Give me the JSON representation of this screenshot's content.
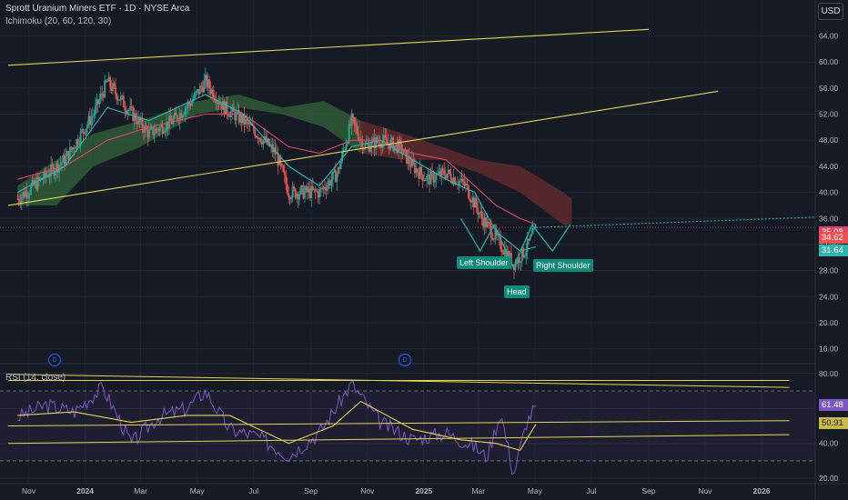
{
  "header": {
    "title": "Sprott Uranium Miners ETF · 1D · NYSE Arca",
    "indicator": "Ichimoku (20, 60, 120, 30)",
    "rsi_label": "RSI (14, close)",
    "currency": "USD"
  },
  "event_marker_label": "D",
  "pattern_labels": {
    "left": "Left Shoulder",
    "head": "Head",
    "right": "Right Shoulder"
  },
  "price_tags": {
    "a": "35.08",
    "b": "34.62",
    "c": "31.64"
  },
  "rsi_tags": {
    "a": "61.48",
    "b": "50.91"
  },
  "colors": {
    "background": "#161a25",
    "up": "#26a69a",
    "down": "#ef5350",
    "trendline": "#e5d35a",
    "conversion": "#2fb5b0",
    "base": "#e0446a",
    "cloud_bull": "#2e5c36",
    "cloud_bear": "#5e2a2e",
    "rsi": "#7e57c2",
    "rsi_ma": "#e5d35a",
    "pattern": "#26a69a"
  },
  "chart_data": {
    "type": "candlestick",
    "title": "Sprott Uranium Miners ETF · 1D · NYSE Arca",
    "x_axis_labels": [
      "Nov",
      "2024",
      "Mar",
      "May",
      "Jul",
      "Sep",
      "Nov",
      "2025",
      "Mar",
      "May",
      "Jul",
      "Sep",
      "Nov",
      "2026"
    ],
    "y_axis": {
      "ticks": [
        16,
        20,
        24,
        28,
        32,
        36,
        40,
        44,
        48,
        52,
        56,
        60,
        64
      ],
      "tick_labels": [
        "16.00",
        "20.00",
        "24.00",
        "28.00",
        "32.00",
        "36.00",
        "40.00",
        "44.00",
        "48.00",
        "52.00",
        "56.00",
        "60.00",
        "64.00"
      ],
      "range": [
        14,
        67
      ]
    },
    "close_path": [
      [
        "2023-10-20",
        39
      ],
      [
        "2023-11-15",
        42
      ],
      [
        "2023-12-10",
        45
      ],
      [
        "2024-01-10",
        52
      ],
      [
        "2024-01-25",
        57
      ],
      [
        "2024-02-15",
        53
      ],
      [
        "2024-03-10",
        49
      ],
      [
        "2024-04-05",
        51
      ],
      [
        "2024-04-25",
        54
      ],
      [
        "2024-05-10",
        57
      ],
      [
        "2024-05-30",
        53
      ],
      [
        "2024-06-20",
        51
      ],
      [
        "2024-07-05",
        49
      ],
      [
        "2024-07-25",
        46
      ],
      [
        "2024-08-08",
        40
      ],
      [
        "2024-08-25",
        40
      ],
      [
        "2024-09-10",
        40
      ],
      [
        "2024-09-30",
        43
      ],
      [
        "2024-10-15",
        51
      ],
      [
        "2024-10-29",
        47
      ],
      [
        "2024-11-15",
        48
      ],
      [
        "2024-12-05",
        47
      ],
      [
        "2024-12-20",
        44
      ],
      [
        "2025-01-05",
        42
      ],
      [
        "2025-01-25",
        43
      ],
      [
        "2025-02-15",
        41
      ],
      [
        "2025-03-05",
        36
      ],
      [
        "2025-03-20",
        33
      ],
      [
        "2025-04-08",
        29
      ],
      [
        "2025-04-20",
        31
      ],
      [
        "2025-05-01",
        34
      ],
      [
        "2025-05-02",
        34.62
      ]
    ],
    "ichimoku": {
      "settings": "20, 60, 120, 30",
      "conversion_path": [
        [
          "2023-10-20",
          40
        ],
        [
          "2023-12-10",
          44
        ],
        [
          "2024-01-25",
          53
        ],
        [
          "2024-03-10",
          51
        ],
        [
          "2024-05-10",
          55
        ],
        [
          "2024-06-20",
          52
        ],
        [
          "2024-08-08",
          44
        ],
        [
          "2024-09-10",
          41
        ],
        [
          "2024-10-15",
          47
        ],
        [
          "2024-11-15",
          48
        ],
        [
          "2024-12-20",
          45
        ],
        [
          "2025-01-25",
          42
        ],
        [
          "2025-02-25",
          40
        ],
        [
          "2025-03-20",
          34
        ],
        [
          "2025-04-15",
          31
        ],
        [
          "2025-05-02",
          31.64
        ]
      ],
      "base_path": [
        [
          "2023-10-20",
          42
        ],
        [
          "2023-12-10",
          44
        ],
        [
          "2024-01-25",
          48
        ],
        [
          "2024-03-10",
          50
        ],
        [
          "2024-05-10",
          52
        ],
        [
          "2024-06-20",
          52
        ],
        [
          "2024-08-08",
          47
        ],
        [
          "2024-09-10",
          46
        ],
        [
          "2024-10-15",
          48
        ],
        [
          "2024-11-15",
          48
        ],
        [
          "2024-12-20",
          46
        ],
        [
          "2025-01-25",
          45
        ],
        [
          "2025-02-25",
          41
        ],
        [
          "2025-03-20",
          38
        ],
        [
          "2025-04-15",
          36
        ],
        [
          "2025-05-02",
          35.08
        ]
      ],
      "cloud_path": [
        [
          "2023-10-20",
          38,
          41
        ],
        [
          "2023-12-01",
          38,
          45
        ],
        [
          "2024-01-10",
          44,
          49
        ],
        [
          "2024-03-01",
          47,
          51
        ],
        [
          "2024-05-01",
          52,
          54
        ],
        [
          "2024-06-15",
          53,
          55
        ],
        [
          "2024-08-01",
          52,
          53
        ],
        [
          "2024-09-15",
          50,
          54
        ],
        [
          "2024-10-25",
          46,
          51
        ],
        [
          "2024-12-10",
          45,
          49
        ],
        [
          "2025-01-20",
          45,
          47
        ],
        [
          "2025-03-01",
          43,
          45
        ],
        [
          "2025-04-15",
          40,
          44
        ],
        [
          "2025-06-01",
          35,
          40
        ],
        [
          "2025-06-10",
          35,
          39
        ]
      ]
    },
    "trendlines": [
      {
        "from": [
          "2023-10-10",
          59.5
        ],
        "to": [
          "2025-09-01",
          65
        ]
      },
      {
        "from": [
          "2023-10-10",
          38
        ],
        "to": [
          "2025-11-15",
          55.5
        ]
      }
    ],
    "pattern": {
      "name": "Head and Shoulders",
      "points": [
        [
          "2025-02-10",
          36
        ],
        [
          "2025-03-03",
          31
        ],
        [
          "2025-03-18",
          35
        ],
        [
          "2025-04-08",
          28.5
        ],
        [
          "2025-04-28",
          35
        ],
        [
          "2025-05-20",
          31
        ],
        [
          "2025-06-08",
          35
        ]
      ]
    },
    "last_price_line": 34.62
  },
  "rsi_chart": {
    "type": "line",
    "title": "RSI (14, close)",
    "y_axis": {
      "ticks": [
        20,
        40,
        60,
        80
      ],
      "tick_labels": [
        "20.00",
        "40.00",
        "60.00",
        "80.00"
      ],
      "range": [
        18,
        83
      ]
    },
    "levels": [
      70,
      30
    ],
    "rsi_path": [
      [
        "2023-10-20",
        55
      ],
      [
        "2023-11-20",
        62
      ],
      [
        "2023-12-20",
        58
      ],
      [
        "2024-01-20",
        72
      ],
      [
        "2024-02-20",
        40
      ],
      [
        "2024-03-20",
        55
      ],
      [
        "2024-04-20",
        60
      ],
      [
        "2024-05-10",
        70
      ],
      [
        "2024-06-05",
        48
      ],
      [
        "2024-07-05",
        44
      ],
      [
        "2024-08-08",
        33
      ],
      [
        "2024-09-10",
        46
      ],
      [
        "2024-10-15",
        74
      ],
      [
        "2024-11-15",
        52
      ],
      [
        "2024-12-20",
        42
      ],
      [
        "2025-01-25",
        46
      ],
      [
        "2025-02-25",
        38
      ],
      [
        "2025-03-10",
        32
      ],
      [
        "2025-03-25",
        58
      ],
      [
        "2025-04-08",
        22
      ],
      [
        "2025-04-22",
        52
      ],
      [
        "2025-05-02",
        61.48
      ]
    ],
    "ma_path": [
      [
        "2023-10-20",
        56
      ],
      [
        "2023-12-20",
        58
      ],
      [
        "2024-02-20",
        52
      ],
      [
        "2024-04-20",
        56
      ],
      [
        "2024-06-05",
        56
      ],
      [
        "2024-08-08",
        40
      ],
      [
        "2024-09-25",
        50
      ],
      [
        "2024-10-25",
        64
      ],
      [
        "2024-12-20",
        48
      ],
      [
        "2025-02-10",
        42
      ],
      [
        "2025-03-20",
        40
      ],
      [
        "2025-04-15",
        36
      ],
      [
        "2025-05-02",
        50.91
      ]
    ],
    "trendlines": [
      {
        "from": [
          "2023-10-10",
          79.5
        ],
        "to": [
          "2026-01-31",
          72
        ]
      },
      {
        "from": [
          "2023-10-10",
          40
        ],
        "to": [
          "2026-01-31",
          45
        ]
      },
      {
        "from": [
          "2023-10-10",
          76
        ],
        "to": [
          "2026-01-31",
          76
        ]
      },
      {
        "from": [
          "2023-10-10",
          50
        ],
        "to": [
          "2026-01-31",
          53
        ]
      }
    ]
  }
}
